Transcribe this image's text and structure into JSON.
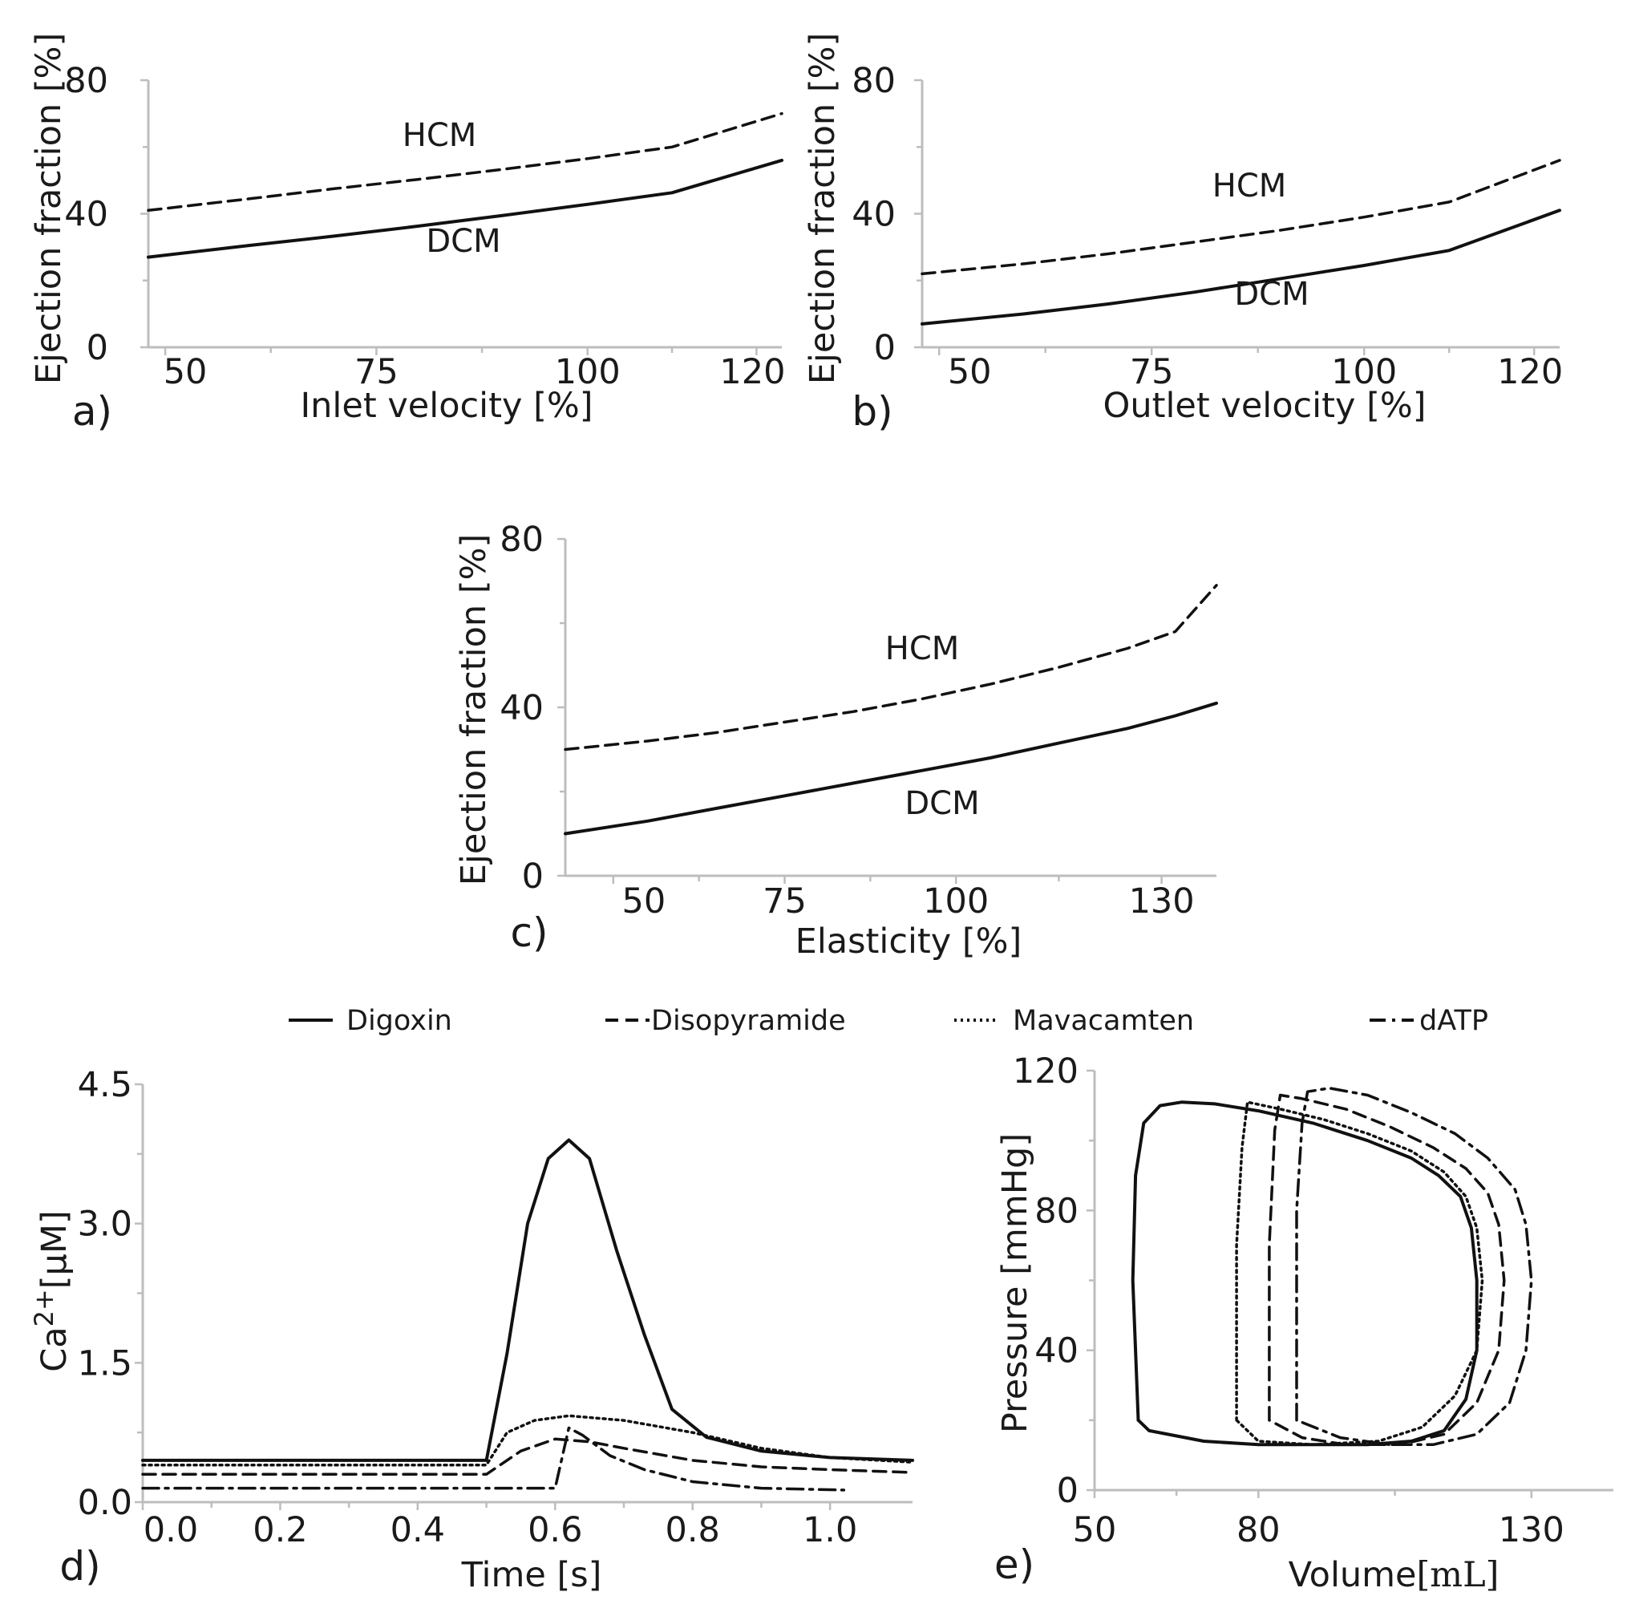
{
  "chart_data": [
    {
      "id": "a",
      "type": "line",
      "panel_label": "a)",
      "xlabel": "Inlet velocity [%]",
      "ylabel": "Ejection fraction [%]",
      "xlim": [
        48,
        123
      ],
      "ylim": [
        0,
        80
      ],
      "xticks": [
        "50",
        "75",
        "100",
        "120"
      ],
      "xtick_values": [
        50,
        75,
        100,
        120
      ],
      "yticks": [
        "0",
        "40",
        "80"
      ],
      "ytick_values": [
        0,
        40,
        80
      ],
      "series": [
        {
          "name": "HCM",
          "label": "HCM",
          "style": "dashed",
          "x": [
            48,
            60,
            70,
            80,
            90,
            100,
            110,
            123
          ],
          "y": [
            41,
            44.5,
            47.5,
            50.3,
            53.3,
            56.5,
            60,
            70
          ]
        },
        {
          "name": "DCM",
          "label": "DCM",
          "style": "solid",
          "x": [
            48,
            60,
            70,
            80,
            90,
            100,
            110,
            123
          ],
          "y": [
            27,
            30.5,
            33.3,
            36.3,
            39.5,
            42.8,
            46.3,
            56
          ]
        }
      ]
    },
    {
      "id": "b",
      "type": "line",
      "panel_label": "b)",
      "xlabel": "Outlet velocity [%]",
      "ylabel": "Ejection fraction [%]",
      "xlim": [
        48,
        123
      ],
      "ylim": [
        0,
        80
      ],
      "xticks": [
        "50",
        "75",
        "100",
        "120"
      ],
      "xtick_values": [
        50,
        75,
        100,
        120
      ],
      "yticks": [
        "0",
        "40",
        "80"
      ],
      "ytick_values": [
        0,
        40,
        80
      ],
      "series": [
        {
          "name": "HCM",
          "label": "HCM",
          "style": "dashed",
          "x": [
            48,
            60,
            70,
            80,
            90,
            100,
            110,
            123
          ],
          "y": [
            22,
            25,
            28,
            31.5,
            35,
            39,
            43.5,
            56
          ]
        },
        {
          "name": "DCM",
          "label": "DCM",
          "style": "solid",
          "x": [
            48,
            60,
            70,
            80,
            90,
            100,
            110,
            123
          ],
          "y": [
            7,
            10,
            13,
            16.5,
            20.5,
            24.5,
            29,
            41
          ]
        }
      ]
    },
    {
      "id": "c",
      "type": "line",
      "panel_label": "c)",
      "xlabel": "Elasticity [%]",
      "ylabel": "Ejection fraction [%]",
      "xlim": [
        43,
        138
      ],
      "ylim": [
        0,
        80
      ],
      "xticks": [
        "50",
        "75",
        "100",
        "130"
      ],
      "xtick_values": [
        50,
        75,
        100,
        130
      ],
      "yticks": [
        "0",
        "40",
        "80"
      ],
      "ytick_values": [
        0,
        40,
        80
      ],
      "series": [
        {
          "name": "HCM",
          "label": "HCM",
          "style": "dashed",
          "x": [
            43,
            55,
            65,
            75,
            85,
            95,
            105,
            115,
            125,
            132,
            138
          ],
          "y": [
            30,
            32,
            34,
            36.5,
            39,
            42,
            45.5,
            49.5,
            54,
            58,
            69
          ]
        },
        {
          "name": "DCM",
          "label": "DCM",
          "style": "solid",
          "x": [
            43,
            55,
            65,
            75,
            85,
            95,
            105,
            115,
            125,
            132,
            138
          ],
          "y": [
            10,
            13,
            16,
            19,
            22,
            25,
            28,
            31.5,
            35,
            38,
            41
          ]
        }
      ]
    },
    {
      "id": "d",
      "type": "line",
      "panel_label": "d)",
      "xlabel": "Time [s]",
      "ylabel_main": "Ca",
      "ylabel_sup": "2+",
      "ylabel_unit": "[µM]",
      "xlim": [
        0,
        1.12
      ],
      "ylim": [
        0,
        4.5
      ],
      "xticks": [
        "0.0",
        "0.2",
        "0.4",
        "0.6",
        "0.8",
        "1.0"
      ],
      "xtick_values": [
        0,
        0.2,
        0.4,
        0.6,
        0.8,
        1.0
      ],
      "yticks": [
        "0.0",
        "1.5",
        "3.0",
        "4.5"
      ],
      "ytick_values": [
        0,
        1.5,
        3.0,
        4.5
      ],
      "series": [
        {
          "name": "Digoxin",
          "style": "solid",
          "x": [
            0,
            0.5,
            0.53,
            0.56,
            0.59,
            0.62,
            0.65,
            0.69,
            0.73,
            0.77,
            0.82,
            0.9,
            1.0,
            1.12
          ],
          "y": [
            0.45,
            0.45,
            1.6,
            3.0,
            3.7,
            3.9,
            3.7,
            2.7,
            1.8,
            1.0,
            0.7,
            0.55,
            0.48,
            0.45
          ]
        },
        {
          "name": "Disopyramide",
          "style": "dashed",
          "x": [
            0,
            0.5,
            0.55,
            0.6,
            0.65,
            0.7,
            0.8,
            0.9,
            1.0,
            1.12
          ],
          "y": [
            0.3,
            0.3,
            0.55,
            0.68,
            0.65,
            0.58,
            0.45,
            0.38,
            0.35,
            0.32
          ]
        },
        {
          "name": "Mavacamten",
          "style": "dotted",
          "x": [
            0,
            0.5,
            0.53,
            0.57,
            0.62,
            0.7,
            0.8,
            0.9,
            1.0,
            1.12
          ],
          "y": [
            0.4,
            0.4,
            0.75,
            0.88,
            0.93,
            0.88,
            0.75,
            0.58,
            0.48,
            0.43
          ]
        },
        {
          "name": "dATP",
          "style": "dashdot",
          "x": [
            0,
            0.6,
            0.62,
            0.64,
            0.68,
            0.73,
            0.8,
            0.9,
            1.02
          ],
          "y": [
            0.15,
            0.15,
            0.8,
            0.72,
            0.5,
            0.35,
            0.22,
            0.15,
            0.13
          ]
        }
      ]
    },
    {
      "id": "e",
      "type": "line",
      "panel_label": "e)",
      "xlabel_main": "Volume",
      "xlabel_unit": "[mL]",
      "ylabel": "Pressure [mmHg]",
      "xlim": [
        50,
        145
      ],
      "ylim": [
        0,
        120
      ],
      "xticks": [
        "50",
        "80",
        "130"
      ],
      "xtick_values": [
        50,
        80,
        130
      ],
      "yticks": [
        "0",
        "40",
        "80",
        "120"
      ],
      "ytick_values": [
        0,
        40,
        80,
        120
      ],
      "series": [
        {
          "name": "Digoxin",
          "style": "solid",
          "x": [
            58,
            57,
            57.5,
            59,
            62,
            66,
            72,
            80,
            90,
            100,
            108,
            113,
            117,
            119,
            120,
            120,
            118,
            114,
            108,
            100,
            90,
            80,
            70,
            60,
            58
          ],
          "y": [
            20,
            60,
            90,
            105,
            110,
            111,
            110.5,
            108.5,
            105,
            100,
            95,
            90,
            84,
            75,
            60,
            40,
            26,
            17,
            14,
            13,
            13,
            13,
            14,
            17,
            20
          ]
        },
        {
          "name": "Mavacamten",
          "style": "dotted",
          "x": [
            76,
            76,
            77,
            78,
            84,
            92,
            100,
            108,
            114,
            118,
            120,
            121,
            120,
            116,
            110,
            102,
            90,
            80,
            76
          ],
          "y": [
            20,
            70,
            98,
            111,
            109,
            106,
            102,
            97,
            91,
            84,
            75,
            60,
            40,
            27,
            18,
            14,
            13,
            14,
            20
          ]
        },
        {
          "name": "Disopyramide",
          "style": "dashed",
          "x": [
            82,
            82,
            83,
            84,
            88,
            96,
            104,
            112,
            118,
            122,
            124,
            125,
            124,
            120,
            114,
            106,
            96,
            88,
            82
          ],
          "y": [
            20,
            70,
            103,
            113,
            112,
            109,
            104,
            98,
            92,
            85,
            76,
            60,
            40,
            25,
            16,
            13,
            13,
            15,
            20
          ]
        },
        {
          "name": "dATP",
          "style": "dashdot",
          "x": [
            87,
            87,
            88,
            89,
            93,
            100,
            108,
            116,
            122,
            127,
            129,
            130,
            129,
            126,
            120,
            112,
            104,
            95,
            87
          ],
          "y": [
            20,
            80,
            105,
            114,
            115,
            113,
            108,
            102,
            95,
            86,
            76,
            60,
            40,
            25,
            16,
            13,
            13,
            15,
            20
          ]
        }
      ]
    }
  ],
  "legend": {
    "placement": "top",
    "items": [
      {
        "name": "Digoxin",
        "style": "solid"
      },
      {
        "name": "Disopyramide",
        "style": "dashed"
      },
      {
        "name": "Mavacamten",
        "style": "dotted"
      },
      {
        "name": "dATP",
        "style": "dashdot"
      }
    ]
  }
}
